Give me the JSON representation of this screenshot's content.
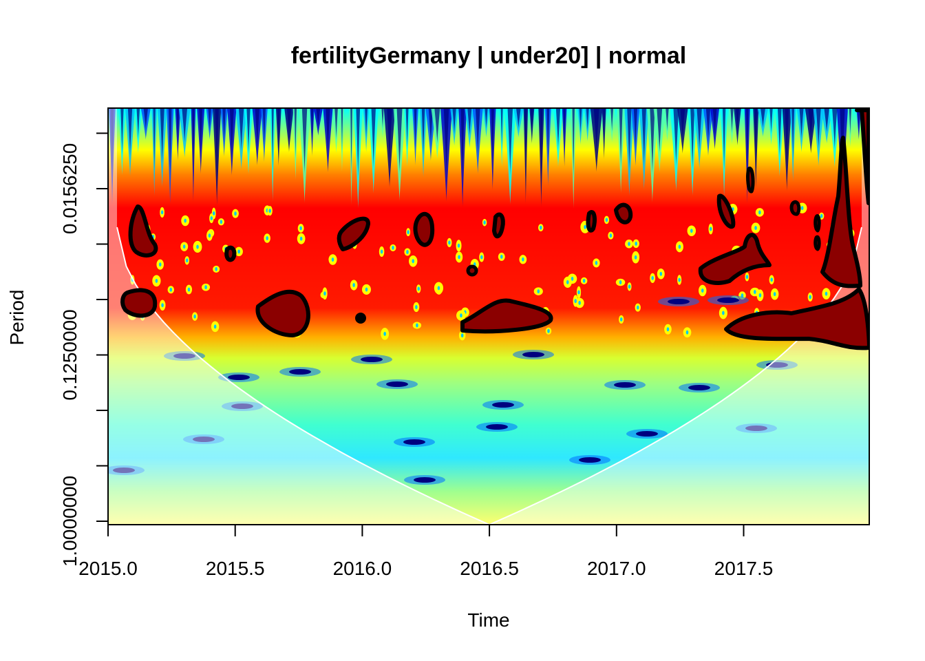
{
  "chart_data": {
    "type": "heatmap",
    "title": "fertilityGermany | under20] | normal",
    "xlabel": "Time",
    "ylabel": "Period",
    "x_ticks": [
      2015.0,
      2015.5,
      2016.0,
      2016.5,
      2017.0,
      2017.5
    ],
    "x_tick_labels": [
      "2015.0",
      "2015.5",
      "2016.0",
      "2016.5",
      "2017.0",
      "2017.5"
    ],
    "xlim": [
      2015.0,
      2017.99
    ],
    "y_tick_labels": [
      "0.0156250",
      "0.1250000",
      "1.0000000"
    ],
    "y_tick_values": [
      0.015625,
      0.125,
      1.0
    ],
    "y_minor_ticks": [
      0.0078125,
      0.03125,
      0.0625,
      0.25,
      0.5
    ],
    "ylim": [
      1.1,
      0.0064
    ],
    "y_scale": "log2, inverted (small periods at top)",
    "palette": [
      "#00007f",
      "#0000ff",
      "#007fff",
      "#00ffff",
      "#7fff7f",
      "#ffff00",
      "#ff7f00",
      "#ff0000",
      "#7f0000"
    ],
    "cone_of_influence": true,
    "significance_contours": true,
    "power_description": "high power (red) at periods 0.02-0.12; low power (cyan/blue) at periods 0.2-1.0"
  }
}
